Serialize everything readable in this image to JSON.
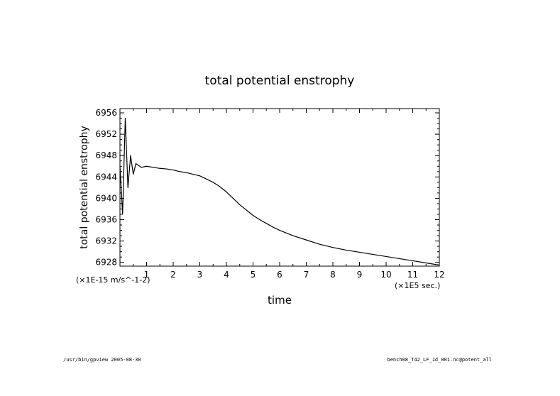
{
  "footer": {
    "left": "/usr/bin/gpview  2005-08-30",
    "right": "bench08_T42_LF_1d_001.nc@potent_all"
  },
  "chart_data": {
    "type": "line",
    "title": "total potential enstrophy",
    "xlabel": "time",
    "ylabel": "total potential enstrophy",
    "x_unit_label": "(×1E5 sec.)",
    "y_unit_label": "(×1E-15 m/s^-1-2)",
    "xlim": [
      0,
      12
    ],
    "ylim": [
      6927.3,
      6956.8
    ],
    "x_ticks": [
      1,
      2,
      3,
      4,
      5,
      6,
      7,
      8,
      9,
      10,
      11,
      12
    ],
    "y_ticks": [
      6928,
      6932,
      6936,
      6940,
      6944,
      6948,
      6952,
      6956
    ],
    "grid": false,
    "legend": "none",
    "colors": {
      "line": "#000000",
      "axes": "#000000"
    },
    "series": [
      {
        "x": [
          0.0,
          0.1,
          0.2,
          0.3,
          0.4,
          0.5,
          0.6,
          0.8,
          1.0,
          1.25,
          1.5,
          1.75,
          2.0,
          2.25,
          2.5,
          2.75,
          3.0,
          3.25,
          3.5,
          3.75,
          4.0,
          4.25,
          4.5,
          4.75,
          5.0,
          5.25,
          5.5,
          5.75,
          6.0,
          6.5,
          7.0,
          7.5,
          8.0,
          8.5,
          9.0,
          9.5,
          10.0,
          10.5,
          11.0,
          11.5,
          12.0
        ],
        "y": [
          6946.0,
          6937.0,
          6955.0,
          6942.0,
          6948.0,
          6944.5,
          6946.5,
          6945.8,
          6946.0,
          6945.8,
          6945.6,
          6945.5,
          6945.3,
          6945.0,
          6944.8,
          6944.5,
          6944.2,
          6943.6,
          6943.0,
          6942.2,
          6941.2,
          6940.0,
          6938.8,
          6937.8,
          6936.8,
          6936.0,
          6935.3,
          6934.6,
          6934.0,
          6933.0,
          6932.2,
          6931.4,
          6930.8,
          6930.3,
          6929.9,
          6929.5,
          6929.1,
          6928.7,
          6928.3,
          6927.9,
          6927.5
        ]
      }
    ]
  }
}
